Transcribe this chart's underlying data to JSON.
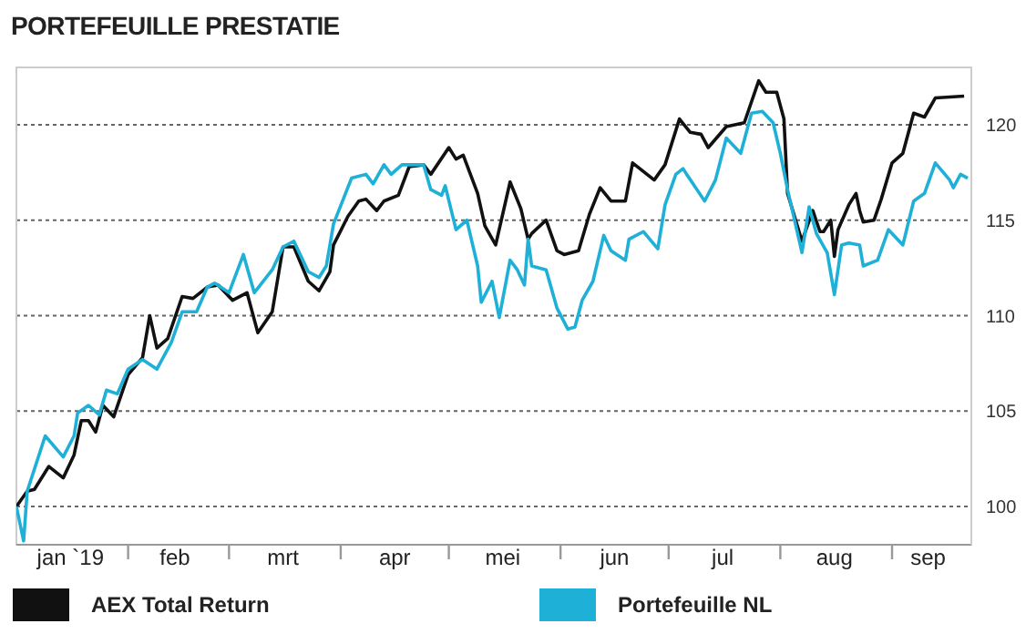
{
  "chart_data": {
    "type": "line",
    "title": "PORTEFEUILLE PRESTATIE",
    "xlim": [
      "2019-01-01",
      "2019-09-23"
    ],
    "xticks": [
      {
        "value": "2019-01-16",
        "label": "jan `19"
      },
      {
        "value": "2019-02-01",
        "label": null
      },
      {
        "value": "2019-02-14",
        "label": "feb"
      },
      {
        "value": "2019-03-01",
        "label": null
      },
      {
        "value": "2019-03-16",
        "label": "mrt"
      },
      {
        "value": "2019-04-01",
        "label": null
      },
      {
        "value": "2019-04-16",
        "label": "apr"
      },
      {
        "value": "2019-05-01",
        "label": null
      },
      {
        "value": "2019-05-16",
        "label": "mei"
      },
      {
        "value": "2019-06-01",
        "label": null
      },
      {
        "value": "2019-06-16",
        "label": "jun"
      },
      {
        "value": "2019-07-01",
        "label": null
      },
      {
        "value": "2019-07-16",
        "label": "jul"
      },
      {
        "value": "2019-08-01",
        "label": null
      },
      {
        "value": "2019-08-16",
        "label": "aug"
      },
      {
        "value": "2019-09-01",
        "label": null
      },
      {
        "value": "2019-09-11",
        "label": "sep"
      }
    ],
    "ylim": [
      98,
      123
    ],
    "yticks": [
      100,
      105,
      110,
      115,
      120
    ],
    "grid": "y",
    "legend": "bottom",
    "line_style": "solid",
    "marker": "none",
    "series": [
      {
        "name": "AEX Total Return",
        "color": "#111111",
        "x": [
          "2019-01-01",
          "2019-01-04",
          "2019-01-06",
          "2019-01-10",
          "2019-01-14",
          "2019-01-17",
          "2019-01-19",
          "2019-01-21",
          "2019-01-23",
          "2019-01-25",
          "2019-01-28",
          "2019-02-01",
          "2019-02-05",
          "2019-02-07",
          "2019-02-09",
          "2019-02-12",
          "2019-02-16",
          "2019-02-19",
          "2019-02-23",
          "2019-02-26",
          "2019-03-02",
          "2019-03-06",
          "2019-03-09",
          "2019-03-13",
          "2019-03-16",
          "2019-03-19",
          "2019-03-23",
          "2019-03-26",
          "2019-03-29",
          "2019-03-30",
          "2019-04-03",
          "2019-04-06",
          "2019-04-08",
          "2019-04-11",
          "2019-04-13",
          "2019-04-17",
          "2019-04-20",
          "2019-04-24",
          "2019-04-26",
          "2019-05-01",
          "2019-05-03",
          "2019-05-05",
          "2019-05-09",
          "2019-05-11",
          "2019-05-14",
          "2019-05-18",
          "2019-05-21",
          "2019-05-23",
          "2019-05-24",
          "2019-05-28",
          "2019-05-31",
          "2019-06-02",
          "2019-06-06",
          "2019-06-09",
          "2019-06-12",
          "2019-06-15",
          "2019-06-19",
          "2019-06-21",
          "2019-06-27",
          "2019-06-30",
          "2019-07-04",
          "2019-07-07",
          "2019-07-10",
          "2019-07-12",
          "2019-07-17",
          "2019-07-22",
          "2019-07-26",
          "2019-07-28",
          "2019-07-31",
          "2019-08-02",
          "2019-08-03",
          "2019-08-07",
          "2019-08-10",
          "2019-08-12",
          "2019-08-13",
          "2019-08-15",
          "2019-08-16",
          "2019-08-17",
          "2019-08-20",
          "2019-08-22",
          "2019-08-23",
          "2019-08-24",
          "2019-08-27",
          "2019-08-29",
          "2019-09-01",
          "2019-09-04",
          "2019-09-07",
          "2019-09-10",
          "2019-09-13",
          "2019-09-21"
        ],
        "values": [
          100,
          100.8,
          100.9,
          102.1,
          101.5,
          102.7,
          104.5,
          104.5,
          103.9,
          105.3,
          104.7,
          106.9,
          107.8,
          110,
          108.3,
          108.8,
          111,
          110.9,
          111.5,
          111.6,
          110.8,
          111.2,
          109.1,
          110.2,
          113.6,
          113.6,
          111.8,
          111.3,
          112.3,
          113.7,
          115.2,
          116,
          116.1,
          115.5,
          116,
          116.3,
          117.8,
          117.9,
          117.4,
          118.8,
          118.2,
          118.4,
          116.4,
          114.7,
          113.7,
          117,
          115.6,
          114,
          114.3,
          115,
          113.4,
          113.2,
          113.4,
          115.3,
          116.7,
          116,
          116,
          118,
          117.1,
          117.9,
          120.3,
          119.6,
          119.5,
          118.8,
          119.9,
          120.1,
          122.3,
          121.7,
          121.7,
          120.3,
          116.4,
          113.9,
          115.5,
          114.4,
          114.4,
          115,
          113.1,
          114.5,
          115.8,
          116.4,
          115.5,
          114.9,
          115,
          116.1,
          118,
          118.5,
          120.6,
          120.4,
          121.4,
          121.5
        ]
      },
      {
        "name": "Portefeuille NL",
        "color": "#1fb0d8",
        "x": [
          "2019-01-01",
          "2019-01-03",
          "2019-01-04",
          "2019-01-09",
          "2019-01-14",
          "2019-01-17",
          "2019-01-18",
          "2019-01-21",
          "2019-01-24",
          "2019-01-26",
          "2019-01-29",
          "2019-02-01",
          "2019-02-05",
          "2019-02-09",
          "2019-02-13",
          "2019-02-16",
          "2019-02-20",
          "2019-02-23",
          "2019-02-25",
          "2019-03-01",
          "2019-03-05",
          "2019-03-08",
          "2019-03-13",
          "2019-03-16",
          "2019-03-19",
          "2019-03-23",
          "2019-03-26",
          "2019-03-28",
          "2019-03-30",
          "2019-04-04",
          "2019-04-08",
          "2019-04-10",
          "2019-04-13",
          "2019-04-15",
          "2019-04-18",
          "2019-04-24",
          "2019-04-26",
          "2019-04-29",
          "2019-04-30",
          "2019-05-03",
          "2019-05-06",
          "2019-05-09",
          "2019-05-10",
          "2019-05-13",
          "2019-05-15",
          "2019-05-18",
          "2019-05-20",
          "2019-05-22",
          "2019-05-23",
          "2019-05-24",
          "2019-05-28",
          "2019-05-31",
          "2019-06-03",
          "2019-06-05",
          "2019-06-07",
          "2019-06-10",
          "2019-06-13",
          "2019-06-15",
          "2019-06-19",
          "2019-06-20",
          "2019-06-24",
          "2019-06-28",
          "2019-06-30",
          "2019-07-03",
          "2019-07-05",
          "2019-07-06",
          "2019-07-11",
          "2019-07-14",
          "2019-07-17",
          "2019-07-21",
          "2019-07-24",
          "2019-07-27",
          "2019-07-30",
          "2019-08-01",
          "2019-08-03",
          "2019-08-07",
          "2019-08-09",
          "2019-08-11",
          "2019-08-14",
          "2019-08-16",
          "2019-08-18",
          "2019-08-20",
          "2019-08-23",
          "2019-08-24",
          "2019-08-28",
          "2019-08-31",
          "2019-09-04",
          "2019-09-07",
          "2019-09-10",
          "2019-09-13",
          "2019-09-17",
          "2019-09-18",
          "2019-09-20",
          "2019-09-22"
        ],
        "values": [
          100,
          98.2,
          100.8,
          103.7,
          102.6,
          103.7,
          104.9,
          105.3,
          104.8,
          106.1,
          105.9,
          107.2,
          107.7,
          107.2,
          108.6,
          110.2,
          110.2,
          111.5,
          111.7,
          111.2,
          113.2,
          111.2,
          112.4,
          113.6,
          113.9,
          112.3,
          112,
          112.6,
          114.8,
          117.2,
          117.4,
          116.9,
          117.9,
          117.4,
          117.9,
          117.9,
          116.6,
          116.3,
          116.8,
          114.5,
          115,
          112.6,
          110.7,
          111.8,
          109.9,
          112.9,
          112.4,
          111.6,
          114,
          112.6,
          112.4,
          110.4,
          109.3,
          109.4,
          110.8,
          111.8,
          114.2,
          113.4,
          112.9,
          114,
          114.4,
          113.5,
          115.8,
          117.4,
          117.7,
          117.4,
          116,
          117.1,
          119.3,
          118.5,
          120.6,
          120.7,
          120.1,
          118.5,
          116.6,
          113.3,
          115.7,
          114.3,
          113.3,
          111.1,
          113.7,
          113.8,
          113.7,
          112.6,
          112.9,
          114.5,
          113.7,
          116,
          116.4,
          118,
          117.1,
          116.7,
          117.4,
          117.2
        ]
      }
    ]
  }
}
